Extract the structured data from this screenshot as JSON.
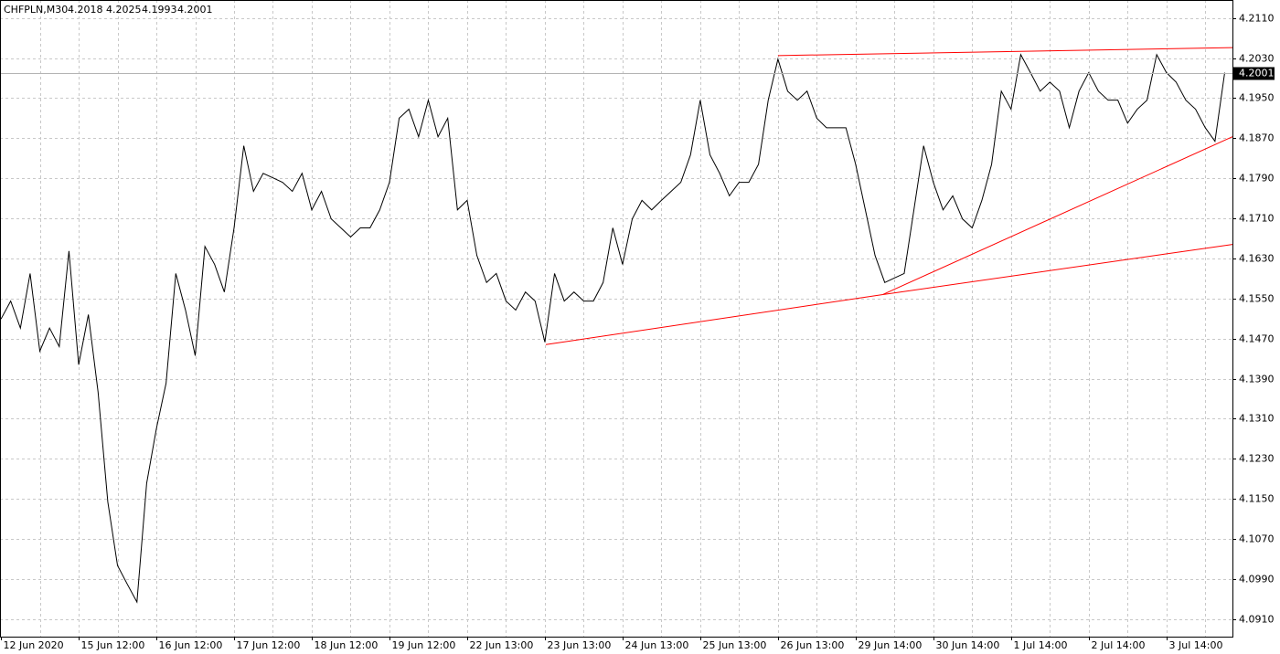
{
  "chart_data": {
    "type": "line",
    "title": "CHFPLN,M30",
    "quote": [
      4.2018,
      4.2025,
      4.1993,
      4.2001
    ],
    "categories": [
      "12 Jun 2020",
      null,
      null,
      null,
      null,
      null,
      null,
      null,
      "15 Jun 12:00",
      null,
      null,
      null,
      null,
      null,
      null,
      null,
      "16 Jun 12:00",
      null,
      null,
      null,
      null,
      null,
      null,
      null,
      "17 Jun 12:00",
      null,
      null,
      null,
      null,
      null,
      null,
      null,
      "18 Jun 12:00",
      null,
      null,
      null,
      null,
      null,
      null,
      null,
      "19 Jun 12:00",
      null,
      null,
      null,
      null,
      null,
      null,
      null,
      "22 Jun 13:00",
      null,
      null,
      null,
      null,
      null,
      null,
      null,
      "23 Jun 13:00",
      null,
      null,
      null,
      null,
      null,
      null,
      null,
      "24 Jun 13:00",
      null,
      null,
      null,
      null,
      null,
      null,
      null,
      "25 Jun 13:00",
      null,
      null,
      null,
      null,
      null,
      null,
      null,
      "26 Jun 13:00",
      null,
      null,
      null,
      null,
      null,
      null,
      null,
      "29 Jun 14:00",
      null,
      null,
      null,
      null,
      null,
      null,
      null,
      "30 Jun 14:00",
      null,
      null,
      null,
      null,
      null,
      null,
      null,
      "1 Jul 14:00",
      null,
      null,
      null,
      null,
      null,
      null,
      null,
      "2 Jul 14:00",
      null,
      null,
      null,
      null,
      null,
      null,
      null,
      "3 Jul 14:00",
      null,
      null,
      null,
      null,
      null,
      null
    ],
    "series": [
      {
        "color": "#000000",
        "values": [
          4.1509,
          4.1545,
          4.1491,
          4.16,
          4.1445,
          4.1491,
          4.1454,
          4.1645,
          4.1418,
          4.1518,
          4.1363,
          4.1144,
          4.1017,
          4.098,
          4.0944,
          4.1181,
          4.129,
          4.1381,
          4.16,
          4.1527,
          4.1436,
          4.1654,
          4.1618,
          4.1563,
          4.1691,
          4.1855,
          4.1764,
          4.18,
          4.1791,
          4.1782,
          4.1764,
          4.18,
          4.1727,
          4.1764,
          4.1709,
          4.1691,
          4.1673,
          4.1691,
          4.1691,
          4.1727,
          4.1782,
          4.191,
          4.1928,
          4.1873,
          4.1946,
          4.1873,
          4.191,
          4.1727,
          4.1746,
          4.1636,
          4.1582,
          4.16,
          4.1545,
          4.1527,
          4.1563,
          4.1545,
          4.1463,
          4.16,
          4.1545,
          4.1563,
          4.1545,
          4.1545,
          4.1582,
          4.1691,
          4.1618,
          4.1709,
          4.1746,
          4.1727,
          4.1746,
          4.1764,
          4.1782,
          4.1837,
          4.1946,
          4.1837,
          4.18,
          4.1755,
          4.1782,
          4.1782,
          4.1818,
          4.1946,
          4.2028,
          4.1964,
          4.1946,
          4.1964,
          4.191,
          4.1891,
          4.1891,
          4.1891,
          4.1818,
          4.1727,
          4.1636,
          4.1582,
          4.1591,
          4.16,
          4.1727,
          4.1855,
          4.1782,
          4.1727,
          4.1755,
          4.1709,
          4.1691,
          4.1746,
          4.1818,
          4.1964,
          4.1928,
          4.2037,
          4.2001,
          4.1964,
          4.1982,
          4.1964,
          4.1891,
          4.1964,
          4.2001,
          4.1964,
          4.1946,
          4.1946,
          4.19,
          4.1928,
          4.1946,
          4.2037,
          4.2001,
          4.1982,
          4.1946,
          4.1928,
          4.1891,
          4.1864,
          4.2001
        ]
      }
    ],
    "last_price": {
      "value": 4.2001,
      "label": "4.2001"
    },
    "trendlines": [
      {
        "color": "#ff0000",
        "x": [
          80,
          126.8
        ],
        "y": [
          4.2035,
          4.2051
        ]
      },
      {
        "color": "#ff0000",
        "x": [
          56.1,
          90.8
        ],
        "y": [
          4.1458,
          4.1558
        ]
      },
      {
        "color": "#ff0000",
        "x": [
          90.8,
          126.8
        ],
        "y": [
          4.1558,
          4.1658
        ]
      },
      {
        "color": "#ff0000",
        "x": [
          90.8,
          126.8
        ],
        "y": [
          4.1558,
          4.1873
        ]
      }
    ],
    "xlim": [
      -0.1,
      126.8
    ],
    "ylim": [
      4.0875,
      4.2146
    ],
    "yticks": [
      {
        "value": 4.211,
        "label": "4.2110"
      },
      {
        "value": 4.203,
        "label": "4.2030"
      },
      {
        "value": 4.195,
        "label": "4.1950"
      },
      {
        "value": 4.187,
        "label": "4.1870"
      },
      {
        "value": 4.179,
        "label": "4.1790"
      },
      {
        "value": 4.171,
        "label": "4.1710"
      },
      {
        "value": 4.163,
        "label": "4.1630"
      },
      {
        "value": 4.155,
        "label": "4.1550"
      },
      {
        "value": 4.147,
        "label": "4.1470"
      },
      {
        "value": 4.139,
        "label": "4.1390"
      },
      {
        "value": 4.131,
        "label": "4.1310"
      },
      {
        "value": 4.123,
        "label": "4.1230"
      },
      {
        "value": 4.115,
        "label": "4.1150"
      },
      {
        "value": 4.107,
        "label": "4.1070"
      },
      {
        "value": 4.099,
        "label": "4.0990"
      },
      {
        "value": 4.091,
        "label": "4.0910"
      }
    ],
    "grid": true
  }
}
